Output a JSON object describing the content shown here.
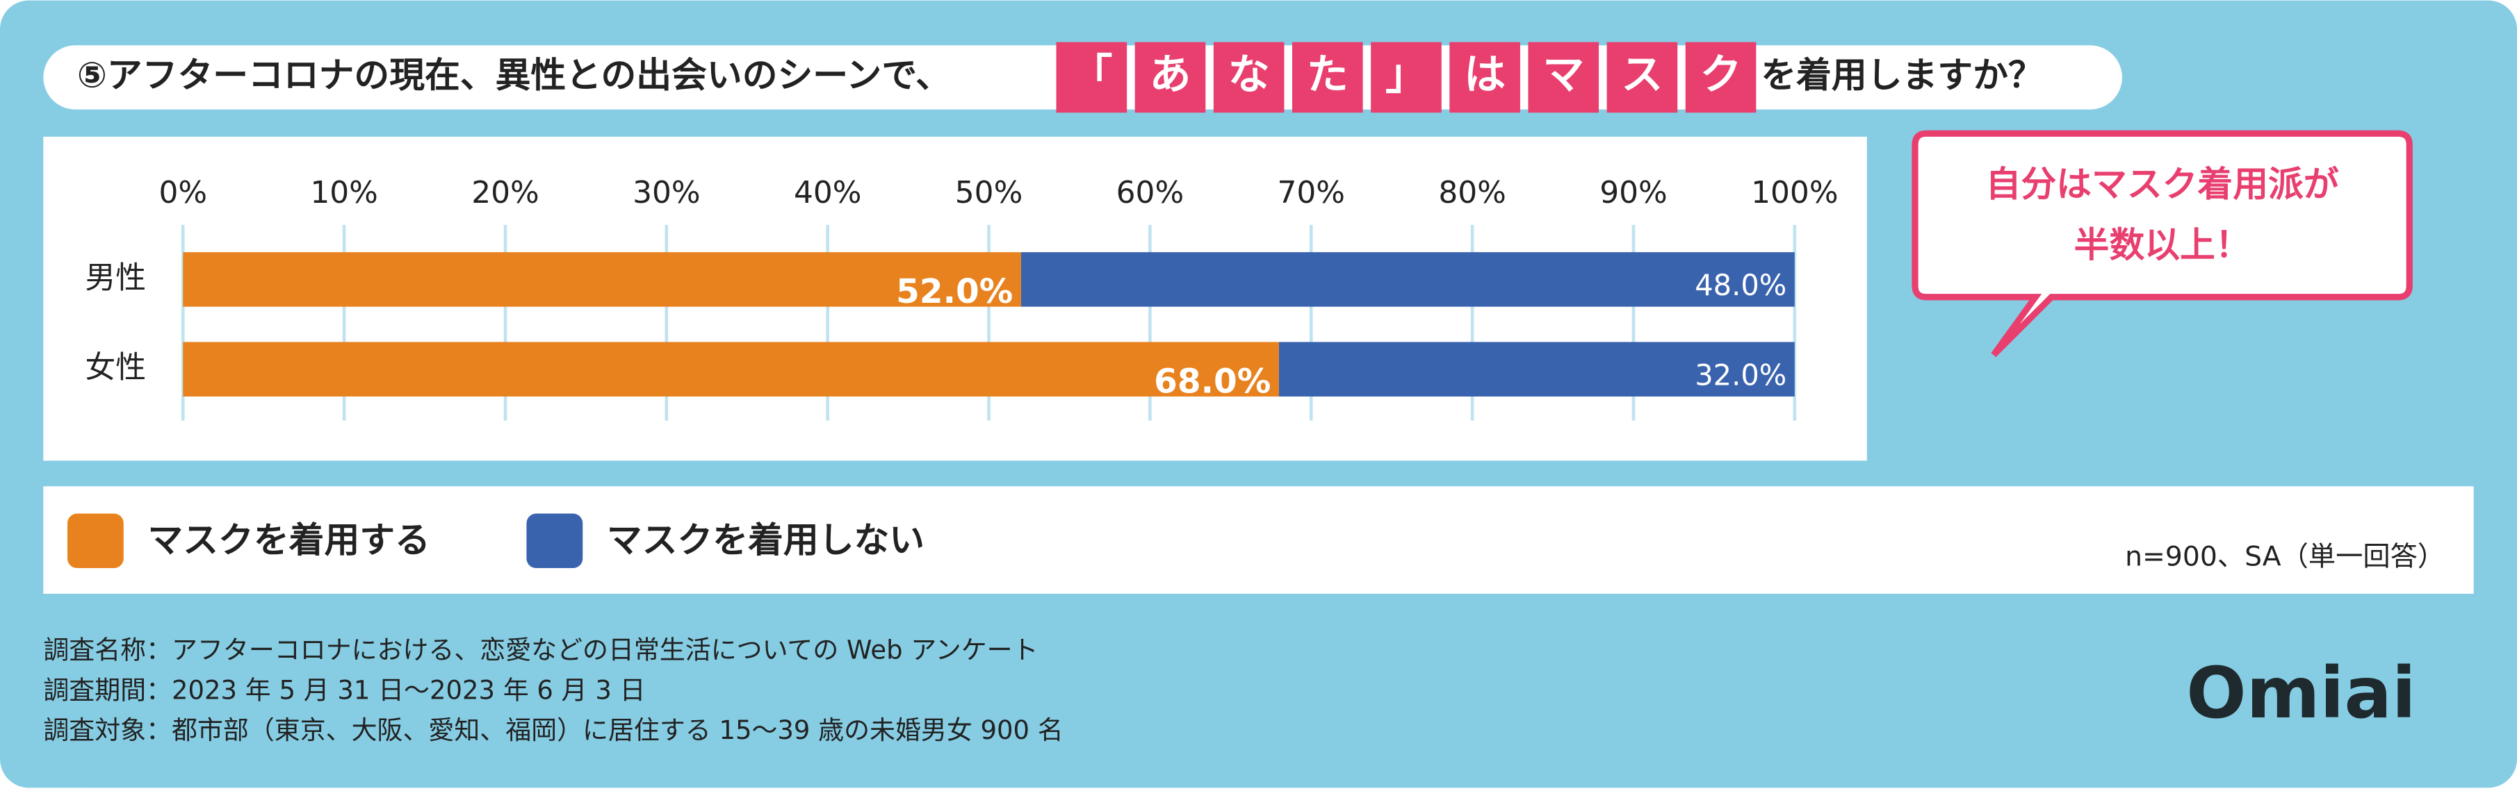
{
  "chart_data": {
    "type": "stacked-bar-horizontal",
    "title_parts": [
      "⑤アフターコロナの現在、異性との出会いのシーンで、",
      "を着用しますか？"
    ],
    "title_highlight": [
      "「",
      "あ",
      "な",
      "た",
      "」",
      "は",
      "マ",
      "ス",
      "ク"
    ],
    "categories": [
      "男性",
      "女性"
    ],
    "series": [
      {
        "name": "マスクを着用する",
        "color": "#E8821E",
        "values": [
          52.0,
          68.0
        ],
        "value_labels": [
          "52.0%",
          "68.0%"
        ]
      },
      {
        "name": "マスクを着用しない",
        "color": "#3A63AE",
        "values": [
          48.0,
          32.0
        ],
        "value_labels": [
          "48.0%",
          "32.0%"
        ]
      }
    ],
    "xlim": [
      0,
      100
    ],
    "xticks": [
      {
        "value": 0,
        "label": "0%"
      },
      {
        "value": 10,
        "label": "10%"
      },
      {
        "value": 20,
        "label": "20%"
      },
      {
        "value": 30,
        "label": "30%"
      },
      {
        "value": 40,
        "label": "40%"
      },
      {
        "value": 50,
        "label": "50%"
      },
      {
        "value": 60,
        "label": "60%"
      },
      {
        "value": 70,
        "label": "70%"
      },
      {
        "value": 80,
        "label": "80%"
      },
      {
        "value": 90,
        "label": "90%"
      },
      {
        "value": 100,
        "label": "100%"
      }
    ],
    "grid": true,
    "callout": [
      "自分はマスク着用派が",
      "半数以上！"
    ],
    "sample_note": "n=900、SA（単一回答）",
    "survey_info": [
      "調査名称：アフターコロナにおける、恋愛などの日常生活についての Web アンケート",
      "調査期間：2023 年 5 月 31 日～2023 年 6 月 3 日",
      "調査対象：都市部（東京、大阪、愛知、福岡）に居住する 15～39 歳の未婚男女 900 名"
    ],
    "logo": "Omiai"
  }
}
